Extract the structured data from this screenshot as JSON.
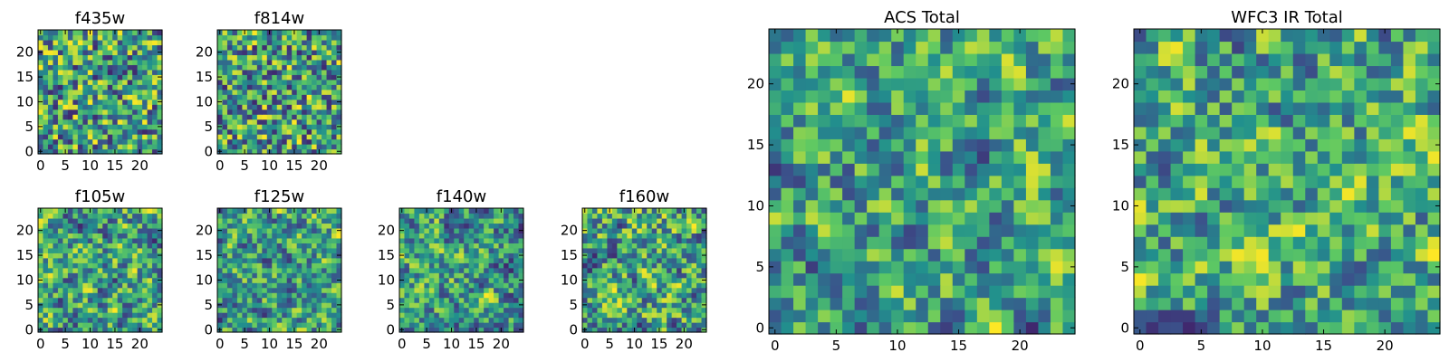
{
  "colormap": [
    "#440154",
    "#3b528b",
    "#21908d",
    "#5dc863",
    "#fde725"
  ],
  "chart_data": [
    {
      "type": "heatmap",
      "title": "f435w",
      "grid_size": 25,
      "seed": 11,
      "xticks": [
        "0",
        "5",
        "10",
        "15",
        "20"
      ],
      "yticks": [
        "0",
        "5",
        "10",
        "15",
        "20"
      ],
      "xlim": [
        -0.5,
        24.5
      ],
      "ylim": [
        -0.5,
        24.5
      ]
    },
    {
      "type": "heatmap",
      "title": "f814w",
      "grid_size": 25,
      "seed": 23,
      "xticks": [
        "0",
        "5",
        "10",
        "15",
        "20"
      ],
      "yticks": [
        "0",
        "5",
        "10",
        "15",
        "20"
      ],
      "xlim": [
        -0.5,
        24.5
      ],
      "ylim": [
        -0.5,
        24.5
      ]
    },
    {
      "type": "heatmap",
      "title": "f105w",
      "grid_size": 25,
      "seed": 37,
      "xticks": [
        "0",
        "5",
        "10",
        "15",
        "20"
      ],
      "yticks": [
        "0",
        "5",
        "10",
        "15",
        "20"
      ],
      "xlim": [
        -0.5,
        24.5
      ],
      "ylim": [
        -0.5,
        24.5
      ]
    },
    {
      "type": "heatmap",
      "title": "f125w",
      "grid_size": 25,
      "seed": 41,
      "xticks": [
        "0",
        "5",
        "10",
        "15",
        "20"
      ],
      "yticks": [
        "0",
        "5",
        "10",
        "15",
        "20"
      ],
      "xlim": [
        -0.5,
        24.5
      ],
      "ylim": [
        -0.5,
        24.5
      ]
    },
    {
      "type": "heatmap",
      "title": "f140w",
      "grid_size": 25,
      "seed": 53,
      "xticks": [
        "0",
        "5",
        "10",
        "15",
        "20"
      ],
      "yticks": [
        "0",
        "5",
        "10",
        "15",
        "20"
      ],
      "xlim": [
        -0.5,
        24.5
      ],
      "ylim": [
        -0.5,
        24.5
      ]
    },
    {
      "type": "heatmap",
      "title": "f160w",
      "grid_size": 25,
      "seed": 67,
      "xticks": [
        "0",
        "5",
        "10",
        "15",
        "20"
      ],
      "yticks": [
        "0",
        "5",
        "10",
        "15",
        "20"
      ],
      "xlim": [
        -0.5,
        24.5
      ],
      "ylim": [
        -0.5,
        24.5
      ]
    },
    {
      "type": "heatmap",
      "title": "ACS Total",
      "grid_size": 25,
      "seed": 79,
      "xticks": [
        "0",
        "5",
        "10",
        "15",
        "20"
      ],
      "yticks": [
        "0",
        "5",
        "10",
        "15",
        "20"
      ],
      "xlim": [
        -0.5,
        24.5
      ],
      "ylim": [
        -0.5,
        24.5
      ]
    },
    {
      "type": "heatmap",
      "title": "WFC3 IR Total",
      "grid_size": 25,
      "seed": 97,
      "xticks": [
        "0",
        "5",
        "10",
        "15",
        "20"
      ],
      "yticks": [
        "0",
        "5",
        "10",
        "15",
        "20"
      ],
      "xlim": [
        -0.5,
        24.5
      ],
      "ylim": [
        -0.5,
        24.5
      ]
    }
  ]
}
